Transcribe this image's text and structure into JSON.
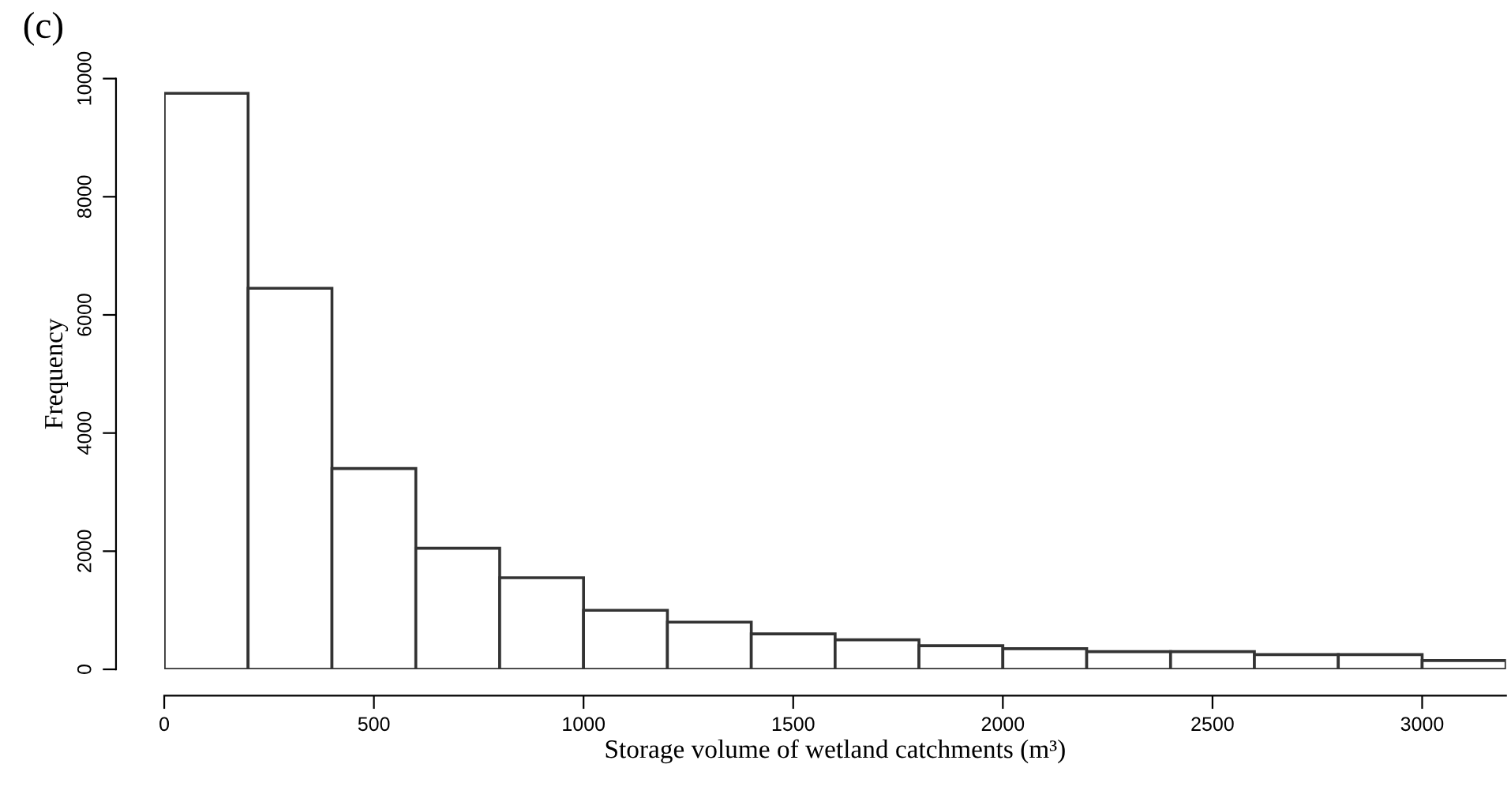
{
  "chart_data": {
    "type": "histogram",
    "title": "(c)",
    "xlabel": "Storage volume of wetland catchments (m³)",
    "ylabel": "Frequency",
    "bins": [
      0,
      200,
      400,
      600,
      800,
      1000,
      1200,
      1400,
      1600,
      1800,
      2000,
      2200,
      2400,
      2600,
      2800,
      3000,
      3200
    ],
    "values": [
      9750,
      6450,
      3400,
      2050,
      1550,
      1000,
      800,
      600,
      500,
      400,
      350,
      300,
      300,
      250,
      250,
      150
    ],
    "color": "#ffffff",
    "xlim": [
      0,
      3200
    ],
    "ylim": [
      0,
      10000
    ],
    "xticks": [
      0,
      500,
      1000,
      1500,
      2000,
      2500,
      3000
    ],
    "yticks": [
      0,
      2000,
      4000,
      6000,
      8000,
      10000
    ],
    "grid": false
  }
}
